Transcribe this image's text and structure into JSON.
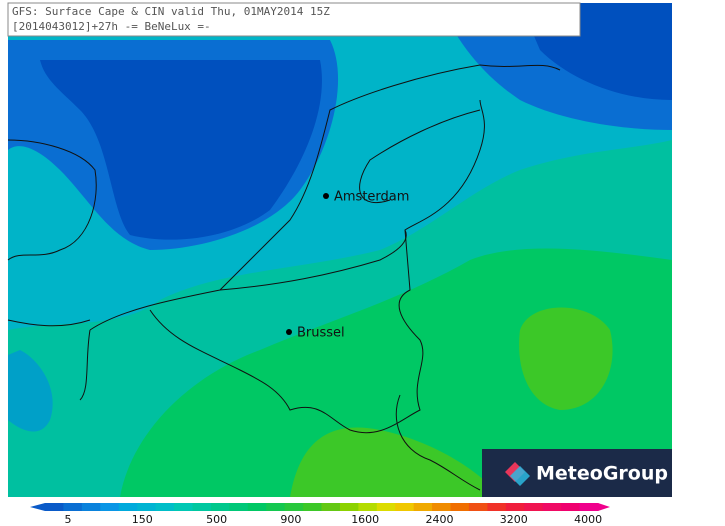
{
  "header": {
    "title": "GFS: Surface Cape & CIN valid Thu, 01MAY2014 15Z",
    "subtitle": "[2014043012]+27h -= BeNeLux =-"
  },
  "map": {
    "cities": [
      {
        "label": "Amsterdam"
      },
      {
        "label": "Brussel"
      }
    ]
  },
  "legend": {
    "ticks": [
      5,
      150,
      500,
      900,
      1600,
      2400,
      3200,
      4000
    ]
  },
  "logo": {
    "text": "MeteoGroup"
  }
}
